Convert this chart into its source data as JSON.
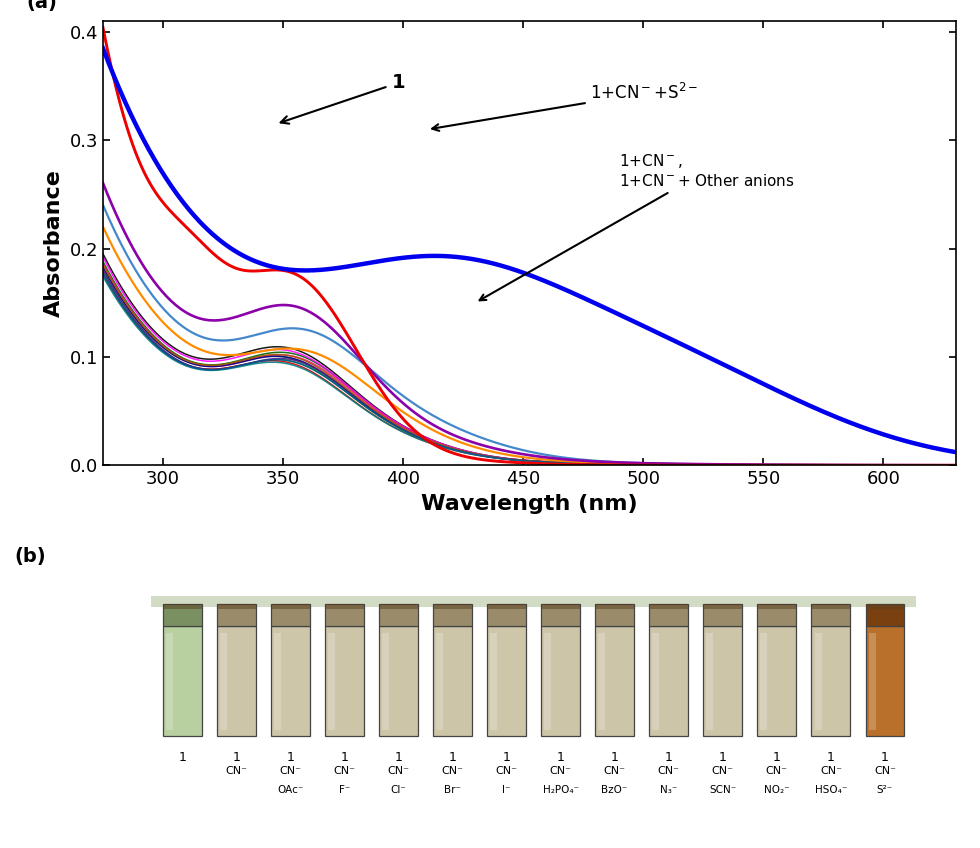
{
  "xlabel": "Wavelength (nm)",
  "ylabel": "Absorbance",
  "xlim": [
    275,
    630
  ],
  "ylim": [
    0.0,
    0.41
  ],
  "yticks": [
    0.0,
    0.1,
    0.2,
    0.3,
    0.4
  ],
  "xticks": [
    300,
    350,
    400,
    450,
    500,
    550,
    600
  ],
  "tube_labels_row1": [
    "1",
    "1",
    "1",
    "1",
    "1",
    "1",
    "1",
    "1",
    "1",
    "1",
    "1",
    "1",
    "1",
    "1"
  ],
  "tube_labels_row2": [
    "",
    "CN⁻",
    "CN⁻",
    "CN⁻",
    "CN⁻",
    "CN⁻",
    "CN⁻",
    "CN⁻",
    "CN⁻",
    "CN⁻",
    "CN⁻",
    "CN⁻",
    "CN⁻",
    "CN⁻"
  ],
  "tube_labels_row3": [
    "",
    "",
    "OAc⁻",
    "F⁻",
    "Cl⁻",
    "Br⁻",
    "I⁻",
    "H₂PO₄⁻",
    "BzO⁻",
    "N₃⁻",
    "SCN⁻",
    "NO₂⁻",
    "HSO₄⁻",
    "S²⁻"
  ],
  "tube_colors_body": [
    "#b8cfa0",
    "#cdc5a8",
    "#cec6a9",
    "#cdc5a8",
    "#cdc5a8",
    "#cdc5a8",
    "#cdc6a8",
    "#cdc5a8",
    "#cdc5a8",
    "#cdc5a8",
    "#cdc5a8",
    "#cdc5a8",
    "#cdc5a8",
    "#b8702a"
  ],
  "tube_colors_top": [
    "#7a9060",
    "#9a8c6a",
    "#9a8c6a",
    "#9a8c6a",
    "#9a8c6a",
    "#9a8c6a",
    "#9a8c6a",
    "#9a8c6a",
    "#9a8c6a",
    "#9a8c6a",
    "#9a8c6a",
    "#9a8c6a",
    "#9a8c6a",
    "#7a4010"
  ]
}
